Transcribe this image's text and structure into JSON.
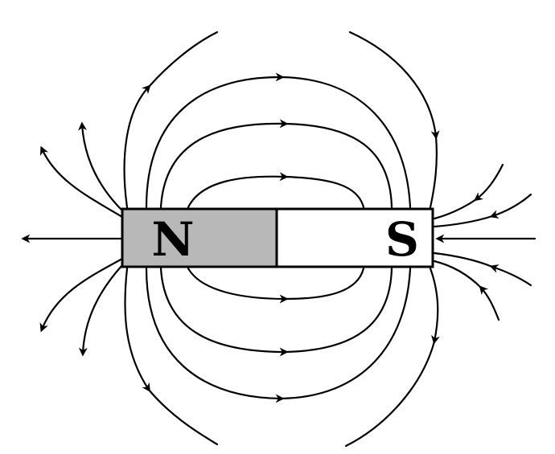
{
  "magnet": {
    "north_label": "N",
    "south_label": "S",
    "north_fill": "#b8b8b8",
    "south_fill": "#ffffff"
  },
  "field": {
    "line_color": "#000000",
    "direction": "north-to-south",
    "arrowheads": "filled"
  }
}
